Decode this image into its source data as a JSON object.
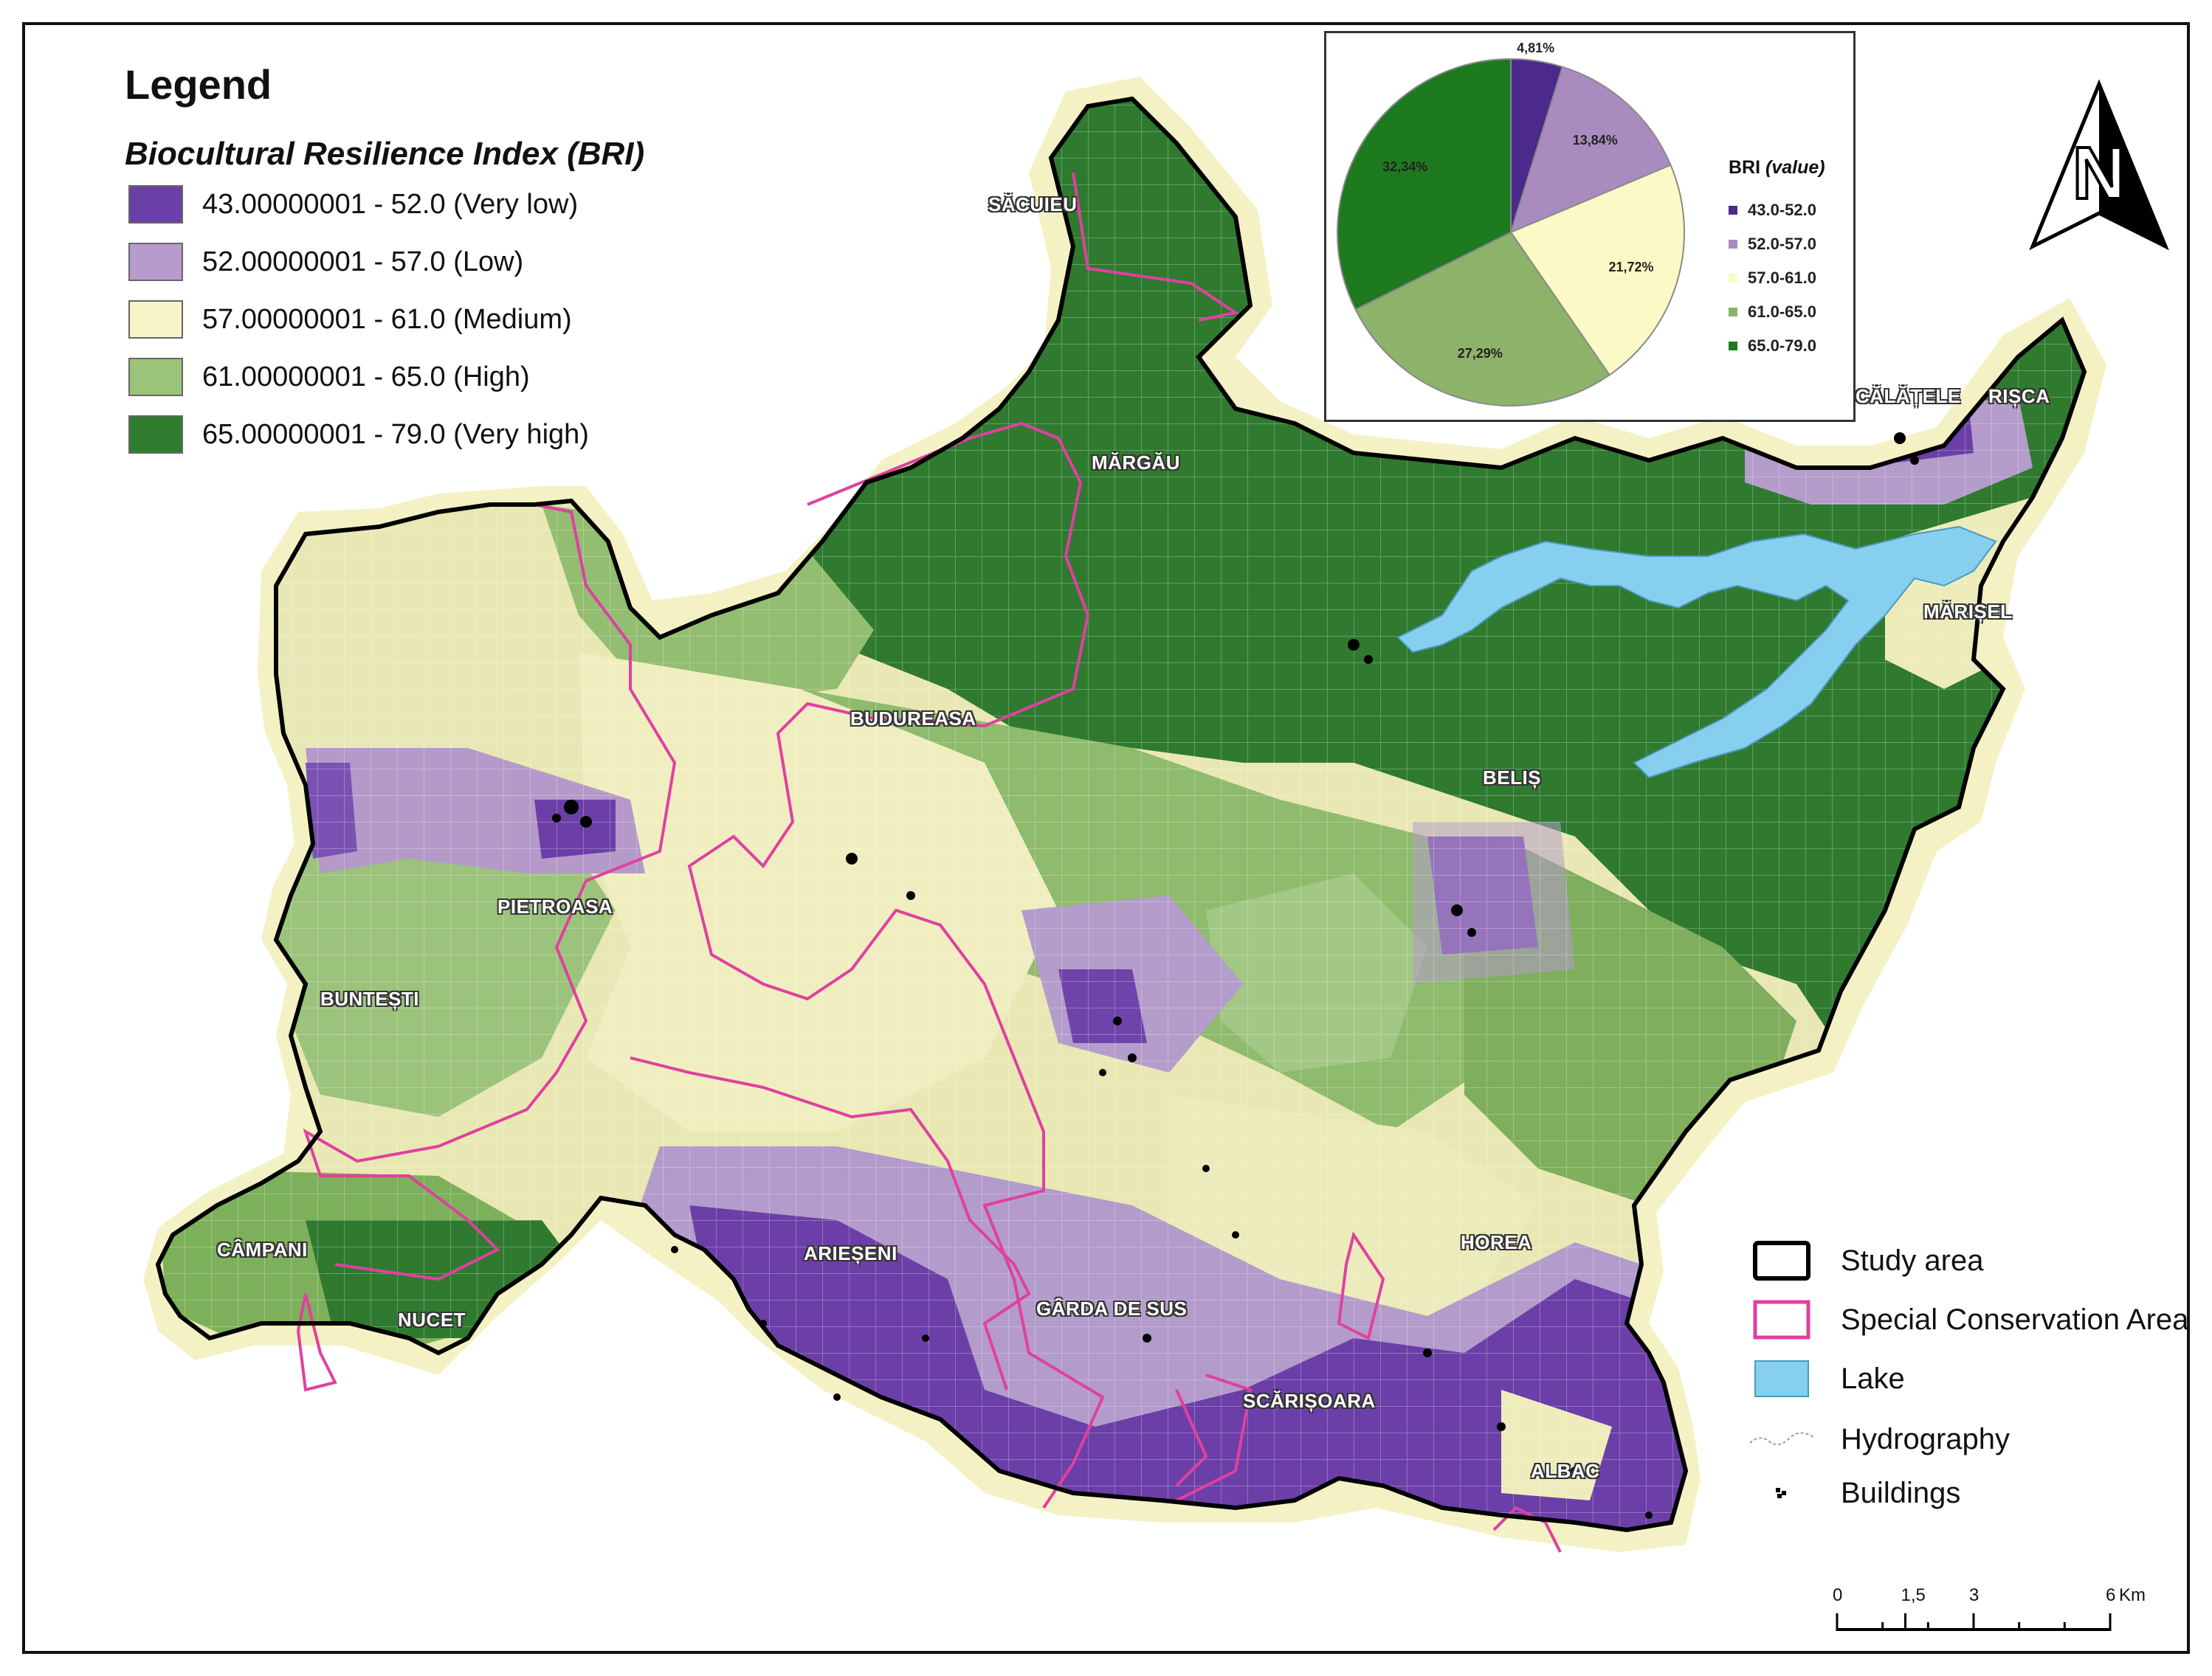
{
  "legend": {
    "title": "Legend",
    "subtitle": "Biocultural Resilience Index (BRI)",
    "classes": [
      {
        "label": "43.00000001 - 52.0 (Very low)",
        "color": "#6a3fa8"
      },
      {
        "label": "52.00000001 - 57.0 (Low)",
        "color": "#b79bcc"
      },
      {
        "label": "57.00000001 - 61.0 (Medium)",
        "color": "#f7f4c8"
      },
      {
        "label": "61.00000001 - 65.0 (High)",
        "color": "#9bc479"
      },
      {
        "label": "65.00000001 - 79.0 (Very high)",
        "color": "#2e7d2e"
      }
    ]
  },
  "pie": {
    "legend_title_bold": "BRI ",
    "legend_title_italic": "(value)",
    "slices": [
      {
        "label": "43.0-52.0",
        "value": 4.81,
        "pct_label": "4,81%",
        "color": "#4b2a8c"
      },
      {
        "label": "52.0-57.0",
        "value": 13.84,
        "pct_label": "13,84%",
        "color": "#a98bc0"
      },
      {
        "label": "57.0-61.0",
        "value": 21.72,
        "pct_label": "21,72%",
        "color": "#fbfac6"
      },
      {
        "label": "61.0-65.0",
        "value": 27.29,
        "pct_label": "27,29%",
        "color": "#8db36b"
      },
      {
        "label": "65.0-79.0",
        "value": 32.34,
        "pct_label": "32,34%",
        "color": "#1e7a1e"
      }
    ]
  },
  "places": [
    {
      "name": "SĂCUIEU"
    },
    {
      "name": "MĂRGĂU"
    },
    {
      "name": "CĂLĂȚELE"
    },
    {
      "name": "RIȘCA"
    },
    {
      "name": "MĂRIȘEL"
    },
    {
      "name": "BUDUREASA"
    },
    {
      "name": "BELIȘ"
    },
    {
      "name": "PIETROASA"
    },
    {
      "name": "BUNTEȘTI"
    },
    {
      "name": "CÂMPANI"
    },
    {
      "name": "NUCET"
    },
    {
      "name": "ARIEȘENI"
    },
    {
      "name": "GÂRDA DE SUS"
    },
    {
      "name": "HOREA"
    },
    {
      "name": "SCĂRIȘOARA"
    },
    {
      "name": "ALBAC"
    }
  ],
  "symbols": [
    {
      "label": "Study area",
      "icon": "study-area-outline",
      "color": "#000000"
    },
    {
      "label": "Special Conservation Area",
      "icon": "conservation-outline",
      "color": "#e040a0"
    },
    {
      "label": "Lake",
      "icon": "lake-fill",
      "color": "#87cfee"
    },
    {
      "label": "Hydrography",
      "icon": "river-line",
      "color": "#8aa0b0"
    },
    {
      "label": "Buildings",
      "icon": "building-dots",
      "color": "#000000"
    }
  ],
  "north_arrow": {
    "letter": "N"
  },
  "scale": {
    "ticks": [
      "0",
      "1,5",
      "3",
      "6"
    ],
    "unit": "Km",
    "values_km": [
      0,
      1.5,
      3,
      6
    ]
  }
}
